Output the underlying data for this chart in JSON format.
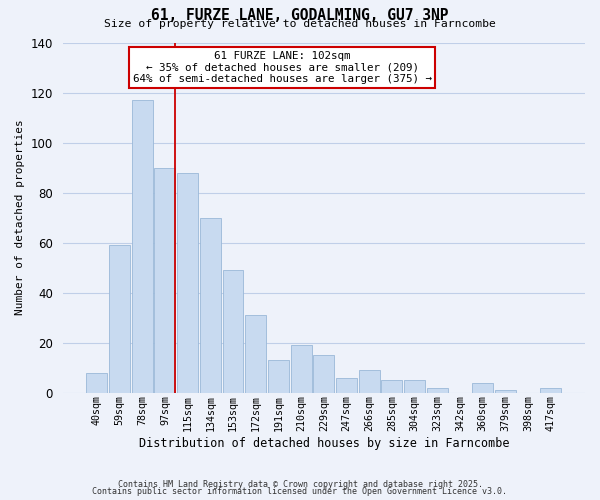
{
  "title": "61, FURZE LANE, GODALMING, GU7 3NP",
  "subtitle": "Size of property relative to detached houses in Farncombe",
  "xlabel": "Distribution of detached houses by size in Farncombe",
  "ylabel": "Number of detached properties",
  "footer_line1": "Contains HM Land Registry data © Crown copyright and database right 2025.",
  "footer_line2": "Contains public sector information licensed under the Open Government Licence v3.0.",
  "bin_labels": [
    "40sqm",
    "59sqm",
    "78sqm",
    "97sqm",
    "115sqm",
    "134sqm",
    "153sqm",
    "172sqm",
    "191sqm",
    "210sqm",
    "229sqm",
    "247sqm",
    "266sqm",
    "285sqm",
    "304sqm",
    "323sqm",
    "342sqm",
    "360sqm",
    "379sqm",
    "398sqm",
    "417sqm"
  ],
  "bar_values": [
    8,
    59,
    117,
    90,
    88,
    70,
    49,
    31,
    13,
    19,
    15,
    6,
    9,
    5,
    5,
    2,
    0,
    4,
    1,
    0,
    2
  ],
  "bar_color": "#c8daf0",
  "bar_edge_color": "#9ab8d8",
  "grid_color": "#c0cfe8",
  "property_line_x": 3.425,
  "property_line_color": "#cc0000",
  "annotation_line1": "61 FURZE LANE: 102sqm",
  "annotation_line2": "← 35% of detached houses are smaller (209)",
  "annotation_line3": "64% of semi-detached houses are larger (375) →",
  "annotation_box_color": "#ffffff",
  "annotation_box_edge_color": "#cc0000",
  "ylim": [
    0,
    140
  ],
  "yticks": [
    0,
    20,
    40,
    60,
    80,
    100,
    120,
    140
  ],
  "background_color": "#eef2fa"
}
